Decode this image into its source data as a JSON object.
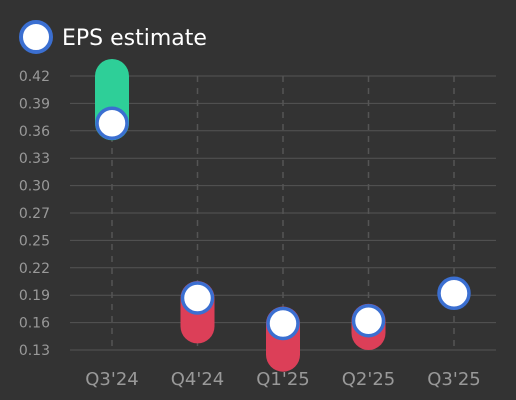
{
  "chart_data": {
    "type": "scatter",
    "categories": [
      "Q3'24",
      "Q4'24",
      "Q1'25",
      "Q2'25",
      "Q3'25"
    ],
    "y_ticks": [
      "0.42",
      "0.39",
      "0.36",
      "0.33",
      "0.30",
      "0.27",
      "0.25",
      "0.22",
      "0.19",
      "0.16",
      "0.13"
    ],
    "ylim": [
      0.13,
      0.42
    ],
    "series": [
      {
        "name": "EPS estimate",
        "values": [
          0.37,
          0.185,
          0.158,
          0.161,
          0.19
        ]
      }
    ],
    "actual_values": [
      0.42,
      0.155,
      0.125,
      0.148,
      null
    ],
    "legend_position": "top-left",
    "grid": true,
    "colors": {
      "background": "#333333",
      "grid": "#555555",
      "tick_text": "#999999",
      "legend_text": "#ffffff",
      "marker_fill": "#ffffff",
      "marker_stroke": "#3b6fd1",
      "beat": "#2ecf98",
      "miss": "#dc3f58"
    }
  }
}
